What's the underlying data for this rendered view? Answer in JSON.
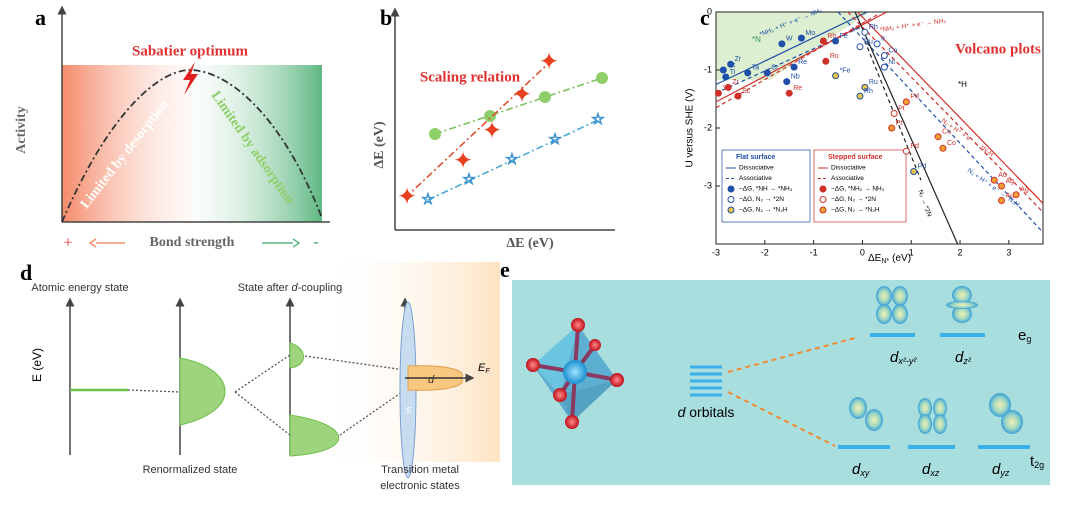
{
  "panels": {
    "a": {
      "label": "a",
      "y_axis": "Activity",
      "annotation": "Sabatier optimum",
      "left_region": "Limited by desorption",
      "right_region": "Limited by adsorption",
      "x_axis": "Bond strength",
      "left_sign": "+",
      "right_sign": "-"
    },
    "b": {
      "label": "b",
      "title": "Scaling relation",
      "y_axis": "ΔE (eV)",
      "x_axis": "ΔE (eV)"
    },
    "c": {
      "label": "c",
      "title": "Volcano plots",
      "y_axis": "U versus SHE (V)",
      "x_axis_main": "ΔE",
      "x_axis_sub": "N*",
      "x_axis_unit": "(eV)",
      "xlim": [
        -3,
        3.7
      ],
      "ylim": [
        -4,
        0
      ],
      "xticks": [
        -3,
        -2,
        -1,
        0,
        1,
        2,
        3
      ],
      "yticks": [
        -3,
        -2,
        -1,
        0
      ],
      "region_labels": [
        "*N",
        "*H"
      ],
      "line_labels": [
        "*NH₂ + H⁺ + e⁻ → NH₃",
        "*NH₂ + H⁺ + e⁻ → NH₃",
        "N₂ + H⁺ + e⁻ → *N₂H",
        "N₂ + H⁺ + e⁻ → *N₂H",
        "N₂ → *2N"
      ],
      "legend_flat": {
        "title": "Flat surface",
        "items": [
          "Dissociative",
          "Associative",
          "−ΔG, *NH → *NH₃",
          "−ΔG, N₂ → *2N",
          "−ΔG, N₂ → *N₂H"
        ]
      },
      "legend_stepped": {
        "title": "Stepped surface",
        "items": [
          "Dissociative",
          "Associative",
          "−ΔG, *NH₂ → NH₃",
          "−ΔG, N₂ → *2N",
          "−ΔG, N₂ → *N₂H"
        ]
      },
      "lines": [
        {
          "color": "#1f4fa8",
          "dash": false,
          "x": [
            -3,
            0.1
          ],
          "y": [
            -1.25,
            0
          ]
        },
        {
          "color": "#1f4fa8",
          "dash": true,
          "x": [
            -3,
            0
          ],
          "y": [
            -1.4,
            -0.25
          ]
        },
        {
          "color": "#d0302a",
          "dash": false,
          "x": [
            -3,
            0.5
          ],
          "y": [
            -1.55,
            0
          ]
        },
        {
          "color": "#d0302a",
          "dash": true,
          "x": [
            -3,
            0.3
          ],
          "y": [
            -1.65,
            -0.05
          ]
        },
        {
          "color": "#1f4fa8",
          "dash": true,
          "x": [
            -0.5,
            3.7
          ],
          "y": [
            0,
            -3.8
          ]
        },
        {
          "color": "#d0302a",
          "dash": true,
          "x": [
            -0.3,
            3.7
          ],
          "y": [
            0,
            -3.45
          ]
        },
        {
          "color": "#d0302a",
          "dash": false,
          "x": [
            -0.1,
            3.7
          ],
          "y": [
            0,
            -3.3
          ]
        },
        {
          "color": "#222222",
          "dash": false,
          "x": [
            -0.15,
            1.95
          ],
          "y": [
            0,
            -4
          ]
        },
        {
          "color": "#222222",
          "dash": true,
          "x": [
            0.05,
            1.2
          ],
          "y": [
            -0.5,
            -2.9
          ]
        }
      ],
      "series": [
        {
          "color": "#1f4fa8",
          "fill": "#1f4fa8",
          "points": [
            {
              "x": -2.85,
              "y": -1.0,
              "label": "Sc"
            },
            {
              "x": -2.7,
              "y": -0.9,
              "label": "Zr"
            },
            {
              "x": -2.8,
              "y": -1.12,
              "label": "Ti"
            },
            {
              "x": -2.35,
              "y": -1.05,
              "label": "Ta"
            },
            {
              "x": -1.95,
              "y": -1.05,
              "label": "Cr"
            },
            {
              "x": -1.55,
              "y": -1.2,
              "label": "Nb"
            },
            {
              "x": -1.4,
              "y": -0.95,
              "label": "Re"
            },
            {
              "x": -1.65,
              "y": -0.55,
              "label": "W"
            },
            {
              "x": -1.25,
              "y": -0.45,
              "label": "Mo"
            },
            {
              "x": -0.55,
              "y": -0.5,
              "label": "Fe"
            }
          ]
        },
        {
          "color": "#1f4fa8",
          "fill": "#ffffff",
          "points": [
            {
              "x": 0.05,
              "y": -0.35,
              "label": "Rh"
            },
            {
              "x": 0.3,
              "y": -0.55,
              "label": "Ir"
            },
            {
              "x": 0.45,
              "y": -0.75,
              "label": "Co"
            },
            {
              "x": 0.45,
              "y": -0.95,
              "label": "Ni"
            },
            {
              "x": -0.05,
              "y": -0.6,
              "label": "Ru"
            }
          ]
        },
        {
          "color": "#1f4fa8",
          "fill": "#e8c547",
          "points": [
            {
              "x": 0.05,
              "y": -1.3,
              "label": "Ru"
            },
            {
              "x": -0.05,
              "y": -1.45,
              "label": "Rh"
            },
            {
              "x": -0.55,
              "y": -1.1,
              "label": "*Fe"
            },
            {
              "x": 1.05,
              "y": -2.75,
              "label": "Pd"
            }
          ]
        },
        {
          "color": "#d0302a",
          "fill": "#d0302a",
          "points": [
            {
              "x": -2.95,
              "y": -1.4,
              "label": "Y"
            },
            {
              "x": -2.55,
              "y": -1.45,
              "label": "Sc"
            },
            {
              "x": -2.75,
              "y": -1.3,
              "label": "Zr"
            },
            {
              "x": -1.5,
              "y": -1.4,
              "label": "Re"
            },
            {
              "x": -0.8,
              "y": -0.5,
              "label": "Rh"
            },
            {
              "x": -0.75,
              "y": -0.85,
              "label": "Ru"
            }
          ]
        },
        {
          "color": "#d0302a",
          "fill": "#ffffff",
          "points": [
            {
              "x": 0.9,
              "y": -2.4,
              "label": "Pd"
            },
            {
              "x": 0.65,
              "y": -1.75,
              "label": "Pt"
            }
          ]
        },
        {
          "color": "#d0302a",
          "fill": "#f0a030",
          "points": [
            {
              "x": 0.9,
              "y": -1.55,
              "label": "Pd"
            },
            {
              "x": 0.6,
              "y": -2.0,
              "label": "Pt"
            },
            {
              "x": 1.65,
              "y": -2.35,
              "label": "Co"
            },
            {
              "x": 1.55,
              "y": -2.15,
              "label": "Cu"
            },
            {
              "x": 2.7,
              "y": -2.9,
              "label": "Au"
            },
            {
              "x": 2.85,
              "y": -3.0,
              "label": "Ag"
            },
            {
              "x": 3.15,
              "y": -3.15,
              "label": "Ag"
            },
            {
              "x": 2.85,
              "y": -3.25,
              "label": "Au"
            }
          ]
        }
      ]
    },
    "d": {
      "label": "d",
      "top_left": "Atomic energy state",
      "top_mid": "State after d-coupling",
      "y_axis": "E (eV)",
      "bottom_mid": "Renormalized state",
      "bottom_right": [
        "Transition metal",
        "electronic states"
      ],
      "d_band": "d",
      "s_band": "s",
      "fermi_main": "E",
      "fermi_sub": "F"
    },
    "e": {
      "label": "e",
      "orbitals": "d orbitals",
      "eg_main": "e",
      "eg_sub": "g",
      "t2g_main": "t",
      "t2g_sub": "2g",
      "eg_orbitals": [
        {
          "main": "d",
          "sub": "x²-y²"
        },
        {
          "main": "d",
          "sub": "z²"
        }
      ],
      "t2g_orbitals": [
        {
          "main": "d",
          "sub": "xy"
        },
        {
          "main": "d",
          "sub": "xz"
        },
        {
          "main": "d",
          "sub": "yz"
        }
      ]
    }
  }
}
